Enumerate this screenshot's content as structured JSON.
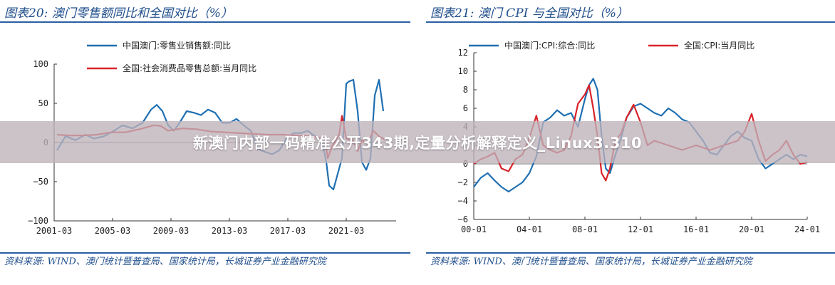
{
  "banner": {
    "text": "新澳门内部一码精准公开343期,定量分析解释定义_Linux3.310"
  },
  "colors": {
    "blue": "#1f6fb2",
    "red": "#d9232a",
    "accent": "#2a5fa3"
  },
  "charts": [
    {
      "title": "图表20:  澳门零售额同比和全国对比（%）",
      "source": "资料来源:  WIND、澳门统计暨普查局、国家统计局，长城证券产业金融研究院",
      "chart_data": {
        "type": "line",
        "title": "图表20:  澳门零售额同比和全国对比（%）",
        "ylim": [
          -100,
          100
        ],
        "y_ticks": [
          "100",
          "50",
          "0",
          "−50",
          "−100"
        ],
        "x_ticks": [
          "2001-03",
          "2005-03",
          "2009-03",
          "2013-03",
          "2017-03",
          "2021-03"
        ],
        "x_range": [
          2001.0,
          2025.0
        ],
        "legend_position": "top",
        "series": [
          {
            "name": "中国澳门:零售业销售额:同比",
            "color": "blue",
            "x": [
              2001.2,
              2001.8,
              2002.5,
              2003.2,
              2003.8,
              2004.5,
              2005.2,
              2005.8,
              2006.5,
              2007.2,
              2007.8,
              2008.2,
              2008.6,
              2009.0,
              2009.4,
              2009.8,
              2010.3,
              2010.8,
              2011.3,
              2011.8,
              2012.3,
              2012.8,
              2013.3,
              2013.8,
              2014.3,
              2014.8,
              2015.3,
              2015.8,
              2016.3,
              2016.8,
              2017.3,
              2017.8,
              2018.3,
              2018.8,
              2019.3,
              2019.8,
              2020.1,
              2020.3,
              2020.6,
              2020.9,
              2021.2,
              2021.5,
              2021.7,
              2022.0,
              2022.3,
              2022.6,
              2022.9,
              2023.2,
              2023.5,
              2023.8,
              2024.1
            ],
            "y": [
              -10,
              8,
              3,
              10,
              5,
              8,
              15,
              22,
              18,
              25,
              42,
              48,
              40,
              22,
              15,
              25,
              40,
              38,
              35,
              42,
              38,
              25,
              25,
              30,
              22,
              15,
              -8,
              -12,
              -15,
              -10,
              5,
              12,
              12,
              15,
              8,
              2,
              -25,
              -55,
              -60,
              -40,
              -20,
              75,
              78,
              80,
              40,
              -25,
              -35,
              -20,
              60,
              80,
              40
            ]
          },
          {
            "name": "全国:社会消费品零售总额:当月同比",
            "color": "red",
            "x": [
              2001.2,
              2002.0,
              2003.0,
              2004.0,
              2005.0,
              2006.0,
              2007.0,
              2008.0,
              2008.5,
              2009.0,
              2010.0,
              2011.0,
              2012.0,
              2013.0,
              2014.0,
              2015.0,
              2016.0,
              2017.0,
              2018.0,
              2019.0,
              2020.0,
              2020.2,
              2020.5,
              2021.0,
              2021.2,
              2021.5,
              2022.0,
              2022.3,
              2022.6,
              2023.0,
              2023.4,
              2023.8,
              2024.2
            ],
            "y": [
              10,
              9,
              9,
              10,
              13,
              13,
              17,
              22,
              21,
              15,
              18,
              17,
              14,
              13,
              12,
              11,
              10,
              10,
              9,
              8,
              5,
              -20,
              -5,
              10,
              34,
              5,
              2,
              -11,
              3,
              -2,
              15,
              8,
              4
            ]
          }
        ]
      }
    },
    {
      "title": "图表21:  澳门 CPI 与全国对比（%）",
      "source": "资料来源:  WIND、澳门统计暨普查局、国家统计局，长城证券产业金融研究院",
      "chart_data": {
        "type": "line",
        "title": "图表21:  澳门 CPI 与全国对比（%）",
        "ylim": [
          -6,
          12
        ],
        "y_ticks": [
          "12",
          "10",
          "8",
          "6",
          "4",
          "2",
          "0",
          "−2",
          "−4",
          "−6"
        ],
        "x_ticks": [
          "00-01",
          "04-01",
          "08-01",
          "12-01",
          "16-01",
          "20-01",
          "24-01"
        ],
        "x_range": [
          2000.0,
          2024.0
        ],
        "legend_position": "top",
        "series": [
          {
            "name": "中国澳门:CPI:综合:同比",
            "color": "blue",
            "x": [
              2000.0,
              2000.5,
              2001.0,
              2001.5,
              2002.0,
              2002.5,
              2003.0,
              2003.5,
              2004.0,
              2004.5,
              2005.0,
              2005.5,
              2006.0,
              2006.5,
              2007.0,
              2007.5,
              2008.0,
              2008.3,
              2008.6,
              2008.9,
              2009.2,
              2009.5,
              2009.8,
              2010.2,
              2010.6,
              2011.0,
              2011.5,
              2012.0,
              2012.5,
              2013.0,
              2013.5,
              2014.0,
              2014.5,
              2015.0,
              2015.5,
              2016.0,
              2016.5,
              2017.0,
              2017.5,
              2018.0,
              2018.5,
              2019.0,
              2019.5,
              2020.0,
              2020.5,
              2021.0,
              2021.5,
              2022.0,
              2022.5,
              2023.0,
              2023.5,
              2024.0
            ],
            "y": [
              -2.5,
              -1.5,
              -1.0,
              -1.8,
              -2.5,
              -3.0,
              -2.5,
              -2.0,
              -1.0,
              0.8,
              4.5,
              5.0,
              5.8,
              5.2,
              5.5,
              4.0,
              7.0,
              8.5,
              9.2,
              8.0,
              3.0,
              -0.5,
              -1.0,
              1.0,
              2.8,
              5.0,
              6.2,
              6.5,
              6.0,
              5.5,
              5.2,
              6.0,
              5.5,
              4.8,
              4.5,
              3.5,
              2.5,
              1.2,
              1.0,
              2.0,
              3.0,
              3.5,
              2.8,
              2.5,
              0.5,
              -0.5,
              0.0,
              0.5,
              1.0,
              0.5,
              1.0,
              0.8
            ]
          },
          {
            "name": "全国:CPI:当月同比",
            "color": "red",
            "x": [
              2000.0,
              2000.5,
              2001.0,
              2001.5,
              2002.0,
              2002.5,
              2003.0,
              2003.5,
              2004.0,
              2004.5,
              2005.0,
              2005.5,
              2006.0,
              2006.5,
              2007.0,
              2007.5,
              2008.0,
              2008.3,
              2008.6,
              2008.9,
              2009.2,
              2009.5,
              2009.8,
              2010.2,
              2010.6,
              2011.0,
              2011.5,
              2012.0,
              2012.5,
              2013.0,
              2014.0,
              2015.0,
              2016.0,
              2017.0,
              2018.0,
              2019.0,
              2019.5,
              2020.0,
              2020.5,
              2021.0,
              2021.5,
              2022.0,
              2022.5,
              2023.0,
              2023.5,
              2024.0
            ],
            "y": [
              0.0,
              0.5,
              0.8,
              1.2,
              -0.5,
              -0.8,
              0.5,
              1.0,
              2.8,
              5.2,
              2.0,
              1.5,
              1.2,
              1.5,
              3.0,
              6.5,
              7.5,
              8.5,
              6.0,
              3.0,
              -1.0,
              -1.8,
              -0.5,
              2.5,
              3.3,
              5.0,
              6.4,
              4.5,
              2.0,
              2.5,
              2.0,
              1.5,
              2.0,
              1.5,
              2.0,
              2.5,
              3.5,
              5.4,
              2.5,
              0.3,
              1.0,
              1.5,
              2.5,
              1.0,
              0.0,
              0.2
            ]
          }
        ]
      }
    }
  ]
}
